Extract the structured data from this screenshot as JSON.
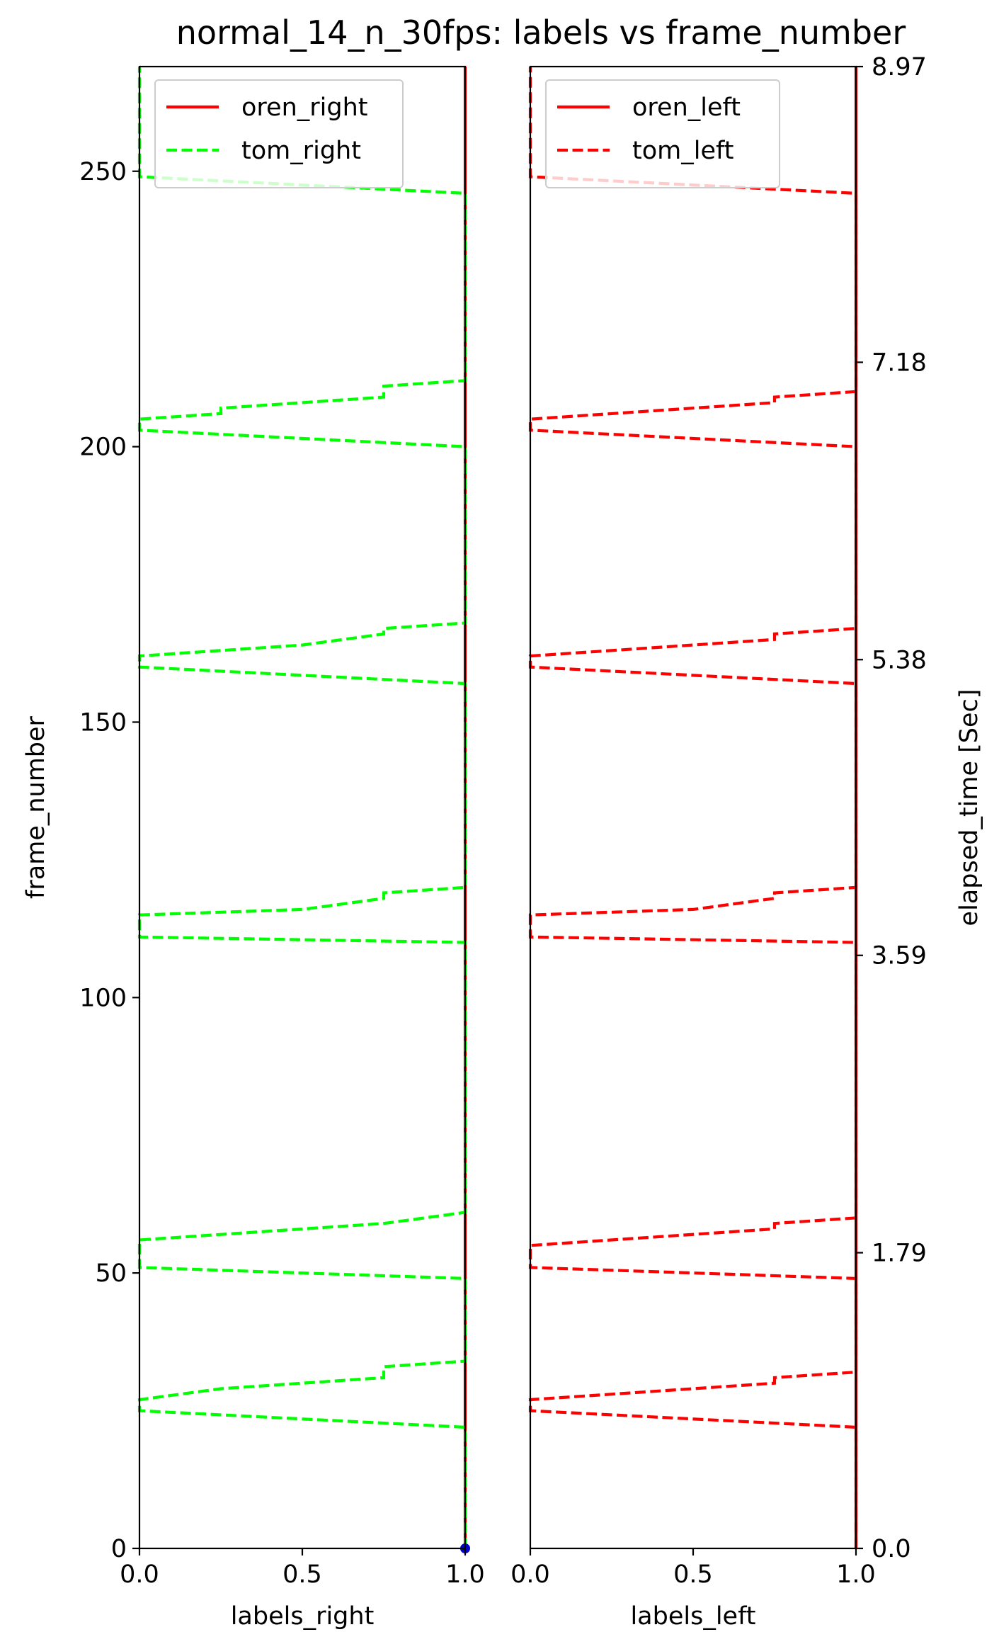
{
  "chart_data": {
    "title": "normal_14_n_30fps: labels vs frame_number",
    "panels": [
      {
        "id": "right",
        "type": "line",
        "xlabel": "labels_right",
        "ylabel": "frame_number",
        "xlim": [
          0.0,
          1.0
        ],
        "ylim": [
          0,
          269
        ],
        "xticks": [
          0.0,
          0.5,
          1.0
        ],
        "xticklabels": [
          "0.0",
          "0.5",
          "1.0"
        ],
        "yticks": [
          0,
          50,
          100,
          150,
          200,
          250
        ],
        "yticklabels": [
          "0",
          "50",
          "100",
          "150",
          "200",
          "250"
        ],
        "legend": "top-left",
        "series": [
          {
            "name": "oren_right",
            "color": "#ff0000",
            "style": "solid",
            "points": [
              [
                1.0,
                0
              ],
              [
                1.0,
                269
              ]
            ]
          },
          {
            "name": "tom_right",
            "color": "#00ff00",
            "style": "dashed",
            "points": [
              [
                1.0,
                0
              ],
              [
                1.0,
                22
              ],
              [
                0.0,
                25
              ],
              [
                0.0,
                27
              ],
              [
                0.25,
                29
              ],
              [
                0.75,
                31
              ],
              [
                0.75,
                33
              ],
              [
                1.0,
                34
              ],
              [
                1.0,
                49
              ],
              [
                0.0,
                51
              ],
              [
                0.0,
                56
              ],
              [
                0.75,
                59
              ],
              [
                1.0,
                61
              ],
              [
                1.0,
                110
              ],
              [
                0.0,
                111
              ],
              [
                0.0,
                115
              ],
              [
                0.5,
                116
              ],
              [
                0.75,
                118
              ],
              [
                0.75,
                119
              ],
              [
                1.0,
                120
              ],
              [
                1.0,
                157
              ],
              [
                0.0,
                160
              ],
              [
                0.0,
                162
              ],
              [
                0.5,
                164
              ],
              [
                0.75,
                166
              ],
              [
                0.75,
                167
              ],
              [
                1.0,
                168
              ],
              [
                1.0,
                200
              ],
              [
                0.0,
                203
              ],
              [
                0.0,
                205
              ],
              [
                0.25,
                206
              ],
              [
                0.25,
                207
              ],
              [
                0.75,
                209
              ],
              [
                0.75,
                211
              ],
              [
                1.0,
                212
              ],
              [
                1.0,
                246
              ],
              [
                0.0,
                249
              ],
              [
                0.0,
                269
              ]
            ]
          }
        ],
        "markers": [
          {
            "x": 1.0,
            "y": 0,
            "color": "#0000cc"
          }
        ]
      },
      {
        "id": "left",
        "type": "line",
        "xlabel": "labels_left",
        "ylabel": "",
        "right_ylabel": "elapsed_time [Sec]",
        "xlim": [
          0.0,
          1.0
        ],
        "ylim": [
          0,
          269
        ],
        "xticks": [
          0.0,
          0.5,
          1.0
        ],
        "xticklabels": [
          "0.0",
          "0.5",
          "1.0"
        ],
        "right_yticks": [
          0.0,
          1.79,
          3.59,
          5.38,
          7.18,
          8.97
        ],
        "right_yticklabels": [
          "0.0",
          "1.79",
          "3.59",
          "5.38",
          "7.18",
          "8.97"
        ],
        "right_ylim": [
          0.0,
          8.97
        ],
        "legend": "top-left",
        "series": [
          {
            "name": "oren_left",
            "color": "#ff0000",
            "style": "solid",
            "points": [
              [
                1.0,
                0
              ],
              [
                1.0,
                269
              ]
            ]
          },
          {
            "name": "tom_left",
            "color": "#ff0000",
            "style": "dashed",
            "points": [
              [
                1.0,
                0
              ],
              [
                1.0,
                22
              ],
              [
                0.0,
                25
              ],
              [
                0.0,
                27
              ],
              [
                0.5,
                29
              ],
              [
                0.75,
                30
              ],
              [
                0.75,
                31
              ],
              [
                1.0,
                32
              ],
              [
                1.0,
                49
              ],
              [
                0.0,
                51
              ],
              [
                0.0,
                55
              ],
              [
                0.75,
                58
              ],
              [
                0.75,
                59
              ],
              [
                1.0,
                60
              ],
              [
                1.0,
                110
              ],
              [
                0.0,
                111
              ],
              [
                0.0,
                115
              ],
              [
                0.5,
                116
              ],
              [
                0.75,
                118
              ],
              [
                0.75,
                119
              ],
              [
                1.0,
                120
              ],
              [
                1.0,
                157
              ],
              [
                0.0,
                160
              ],
              [
                0.0,
                162
              ],
              [
                0.75,
                165
              ],
              [
                0.75,
                166
              ],
              [
                1.0,
                167
              ],
              [
                1.0,
                200
              ],
              [
                0.0,
                203
              ],
              [
                0.0,
                205
              ],
              [
                0.75,
                208
              ],
              [
                0.75,
                209
              ],
              [
                1.0,
                210
              ],
              [
                1.0,
                246
              ],
              [
                0.0,
                249
              ],
              [
                0.0,
                269
              ]
            ]
          }
        ],
        "markers": []
      }
    ]
  }
}
